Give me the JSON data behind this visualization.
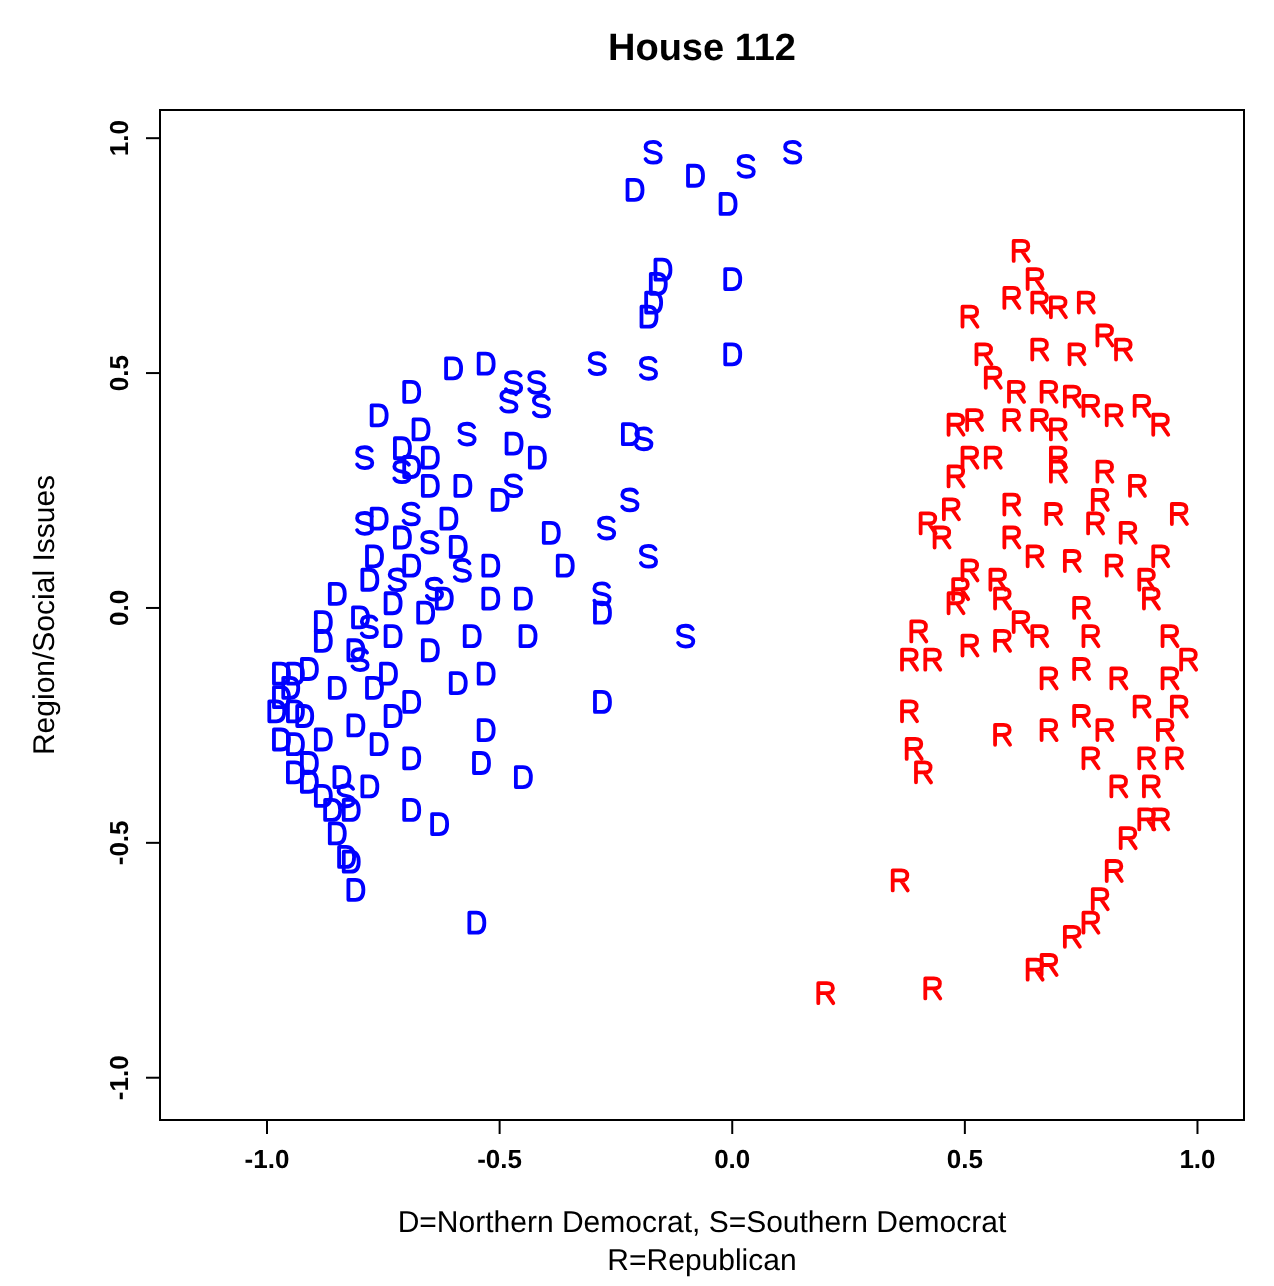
{
  "chart_data": {
    "type": "scatter",
    "title": "House 112",
    "xlabel": "D=Northern Democrat, S=Southern Democrat\nR=Republican",
    "ylabel": "Region/Social Issues",
    "xlim": [
      -1.23,
      1.1
    ],
    "ylim": [
      -1.09,
      1.06
    ],
    "xticks": [
      {
        "value": -1,
        "label": "-1.0"
      },
      {
        "value": -0.5,
        "label": "-0.5"
      },
      {
        "value": 0,
        "label": "0.0"
      },
      {
        "value": 0.5,
        "label": "0.5"
      },
      {
        "value": 1,
        "label": "1.0"
      }
    ],
    "yticks": [
      {
        "value": -1,
        "label": "-1.0"
      },
      {
        "value": -0.5,
        "label": "-0.5"
      },
      {
        "value": 0,
        "label": "0.0"
      },
      {
        "value": 0.5,
        "label": "0.5"
      },
      {
        "value": 1,
        "label": "1.0"
      }
    ],
    "grid": false,
    "series": [
      {
        "color": "#0000ff",
        "x": [
          -0.21,
          -0.08,
          -0.01,
          -0.15,
          -0.16,
          -0.17,
          -0.18,
          0.0,
          0.0,
          -0.6,
          -0.53,
          -0.69,
          -0.76,
          -0.47,
          -0.42,
          -0.22,
          -0.39,
          -0.36,
          -0.67,
          -0.71,
          -0.69,
          -0.65,
          -0.65,
          -0.58,
          -0.5,
          -0.45,
          -0.52,
          -0.56,
          -0.44,
          -0.53,
          -0.77,
          -0.78,
          -0.85,
          -0.8,
          -0.88,
          -0.73,
          -0.69,
          -0.66,
          -0.97,
          -0.94,
          -0.97,
          -0.98,
          -0.94,
          -0.97,
          -0.94,
          -0.91,
          -0.94,
          -0.91,
          -0.88,
          -0.86,
          -0.85,
          -0.83,
          -0.81,
          -0.69,
          -0.63,
          -0.53,
          -0.54,
          -0.69,
          -0.76,
          -0.77,
          -0.69,
          -0.59,
          -0.81,
          -0.74,
          -0.82,
          -0.81,
          -0.85,
          -0.91,
          -0.88,
          -0.73,
          -0.65,
          -0.55,
          -0.45,
          -0.28,
          -0.28,
          -0.82,
          -0.84,
          -0.76,
          -0.71,
          -0.61,
          -0.59,
          -0.62,
          -0.52,
          -0.88,
          -0.92,
          -0.95,
          -0.78,
          -0.73
        ],
        "values": [
          0.89,
          0.92,
          0.86,
          0.72,
          0.69,
          0.65,
          0.62,
          0.7,
          0.54,
          0.51,
          0.52,
          0.46,
          0.41,
          0.35,
          0.32,
          0.37,
          0.16,
          0.09,
          0.38,
          0.34,
          0.3,
          0.32,
          0.26,
          0.26,
          0.23,
          0.02,
          0.02,
          -0.06,
          -0.06,
          -0.14,
          0.11,
          0.06,
          0.03,
          -0.02,
          -0.03,
          0.01,
          0.09,
          -0.01,
          -0.14,
          -0.14,
          -0.19,
          -0.22,
          -0.22,
          -0.28,
          -0.29,
          -0.33,
          -0.35,
          -0.37,
          -0.4,
          -0.43,
          -0.48,
          -0.53,
          -0.6,
          -0.43,
          -0.46,
          -0.26,
          -0.33,
          -0.32,
          -0.29,
          -0.17,
          -0.2,
          -0.16,
          -0.09,
          -0.14,
          -0.43,
          -0.25,
          -0.17,
          -0.13,
          -0.07,
          -0.06,
          -0.09,
          -0.67,
          -0.36,
          -0.2,
          -0.01,
          -0.54,
          -0.36,
          0.19,
          0.15,
          0.19,
          0.13,
          0.02,
          0.09,
          -0.28,
          -0.23,
          -0.17,
          -0.38,
          -0.23
        ]
      },
      {
        "color": "#0000ff",
        "x": [
          -0.17,
          0.03,
          0.13,
          -0.18,
          -0.29,
          -0.47,
          -0.42,
          -0.48,
          -0.41,
          -0.19,
          -0.79,
          -0.57,
          -0.47,
          -0.22,
          -0.27,
          -0.18,
          -0.79,
          -0.1,
          -0.28,
          -0.64,
          -0.71,
          -0.69,
          -0.65,
          -0.78,
          -0.8,
          -0.83,
          -0.72,
          -0.58
        ],
        "values": [
          0.97,
          0.94,
          0.97,
          0.51,
          0.52,
          0.48,
          0.48,
          0.44,
          0.43,
          0.36,
          0.32,
          0.37,
          0.26,
          0.23,
          0.17,
          0.11,
          0.18,
          -0.06,
          0.03,
          0.04,
          0.29,
          0.2,
          0.14,
          -0.04,
          -0.11,
          -0.4,
          0.06,
          0.08
        ]
      },
      {
        "color": "#ff0000",
        "x": [
          0.62,
          0.65,
          0.6,
          0.66,
          0.7,
          0.76,
          0.8,
          0.51,
          0.54,
          0.66,
          0.74,
          0.84,
          0.56,
          0.61,
          0.68,
          0.77,
          0.6,
          0.66,
          0.7,
          0.52,
          0.48,
          0.51,
          0.56,
          0.7,
          0.82,
          0.88,
          0.92,
          0.48,
          0.7,
          0.8,
          0.87,
          0.42,
          0.47,
          0.6,
          0.69,
          0.78,
          0.85,
          0.96,
          0.51,
          0.57,
          0.65,
          0.73,
          0.82,
          0.89,
          0.49,
          0.4,
          0.48,
          0.66,
          0.77,
          0.9,
          0.94,
          0.94,
          0.62,
          0.75,
          0.38,
          0.43,
          0.38,
          0.39,
          0.41,
          0.58,
          0.68,
          0.75,
          0.8,
          0.96,
          0.88,
          0.93,
          0.89,
          0.83,
          0.9,
          0.89,
          0.85,
          0.82,
          0.79,
          0.77,
          0.73,
          0.68,
          0.65,
          0.36,
          0.43,
          0.2,
          0.51,
          0.58,
          0.77,
          0.73,
          0.58,
          0.83,
          0.92,
          0.79,
          0.6,
          0.45,
          0.98,
          0.95,
          0.92,
          0.68,
          0.75
        ],
        "values": [
          0.76,
          0.7,
          0.66,
          0.65,
          0.64,
          0.65,
          0.58,
          0.62,
          0.54,
          0.55,
          0.54,
          0.55,
          0.49,
          0.46,
          0.46,
          0.43,
          0.4,
          0.4,
          0.38,
          0.4,
          0.39,
          0.32,
          0.32,
          0.32,
          0.41,
          0.43,
          0.39,
          0.28,
          0.29,
          0.29,
          0.26,
          0.18,
          0.21,
          0.22,
          0.2,
          0.18,
          0.16,
          0.2,
          0.08,
          0.06,
          0.11,
          0.1,
          0.09,
          0.06,
          0.04,
          -0.05,
          0.01,
          -0.06,
          -0.06,
          0.02,
          -0.06,
          -0.15,
          -0.03,
          0.0,
          -0.11,
          -0.11,
          -0.22,
          -0.3,
          -0.35,
          -0.27,
          -0.26,
          -0.23,
          -0.26,
          -0.21,
          -0.21,
          -0.26,
          -0.32,
          -0.38,
          -0.38,
          -0.45,
          -0.49,
          -0.56,
          -0.62,
          -0.67,
          -0.7,
          -0.76,
          -0.77,
          -0.58,
          -0.81,
          -0.82,
          -0.08,
          -0.07,
          -0.32,
          0.45,
          0.02,
          -0.15,
          0.11,
          0.23,
          0.15,
          0.15,
          -0.11,
          -0.32,
          -0.45,
          -0.15,
          -0.13
        ]
      }
    ]
  }
}
